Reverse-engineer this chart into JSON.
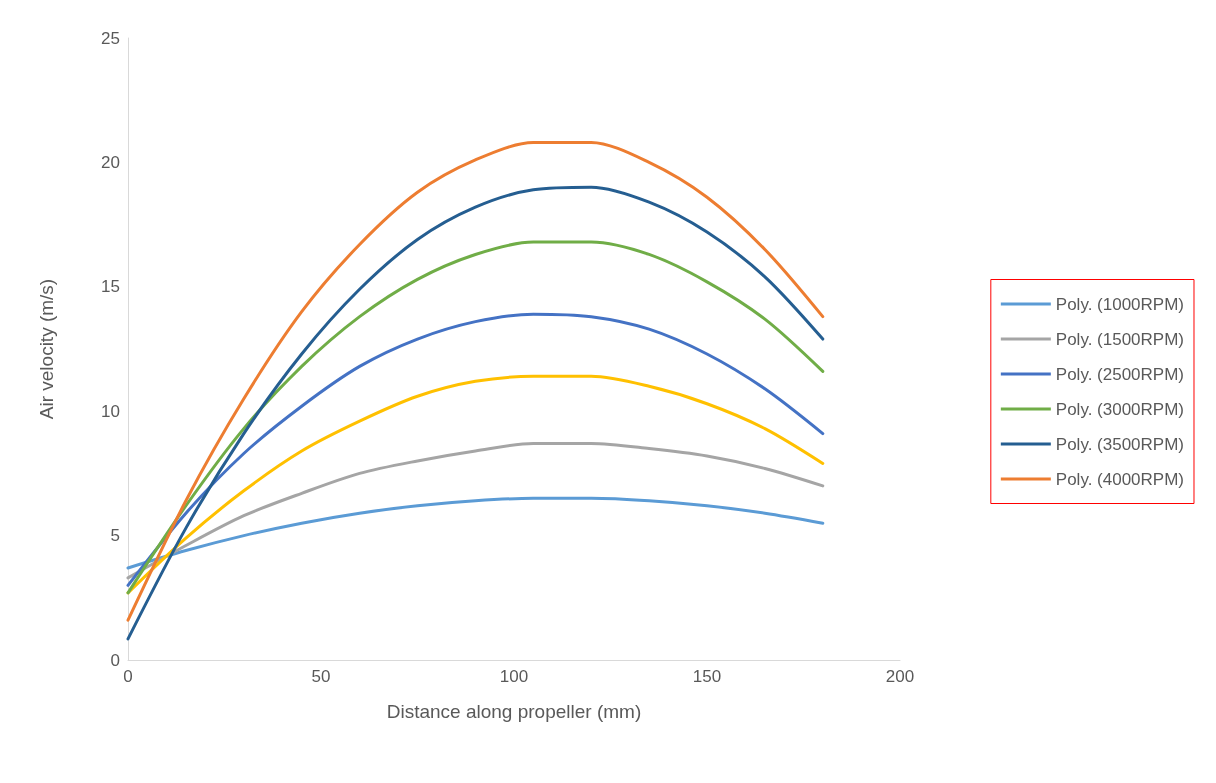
{
  "chart_data": {
    "type": "line",
    "xlabel": "Distance along propeller (mm)",
    "ylabel": "Air velocity (m/s)",
    "x": [
      0,
      15,
      30,
      45,
      60,
      75,
      90,
      105,
      120,
      135,
      150,
      165,
      180
    ],
    "series": [
      {
        "name": "Poly. (1000RPM)",
        "color": "#5b9bd5",
        "values": [
          3.7,
          4.4,
          5.0,
          5.5,
          5.9,
          6.2,
          6.4,
          6.5,
          6.5,
          6.4,
          6.2,
          5.9,
          5.5
        ]
      },
      {
        "name": "Poly. (1500RPM)",
        "color": "#a5a5a5",
        "values": [
          3.3,
          4.6,
          5.8,
          6.7,
          7.5,
          8.0,
          8.4,
          8.7,
          8.7,
          8.5,
          8.2,
          7.7,
          7.0
        ]
      },
      {
        "name": "Poly. (2500RPM)",
        "color": "#4472c4",
        "values": [
          3.0,
          5.9,
          8.3,
          10.2,
          11.8,
          12.9,
          13.6,
          13.9,
          13.8,
          13.3,
          12.3,
          10.9,
          9.1
        ]
      },
      {
        "color": "#ffc000",
        "values": [
          2.7,
          4.9,
          6.8,
          8.4,
          9.6,
          10.6,
          11.2,
          11.4,
          11.4,
          11.0,
          10.3,
          9.3,
          7.9
        ]
      },
      {
        "name": "Poly. (3000RPM)",
        "color": "#70ad47",
        "values": [
          2.7,
          6.2,
          9.3,
          11.8,
          13.8,
          15.3,
          16.3,
          16.8,
          16.8,
          16.3,
          15.2,
          13.7,
          11.6
        ]
      },
      {
        "name": "Poly. (3500RPM)",
        "color": "#255e91",
        "values": [
          0.85,
          5.3,
          9.1,
          12.3,
          14.9,
          16.9,
          18.2,
          18.9,
          19.0,
          18.4,
          17.2,
          15.4,
          12.9
        ]
      },
      {
        "name": "Poly. (4000RPM)",
        "color": "#ed7d31",
        "values": [
          1.6,
          6.4,
          10.5,
          14.0,
          16.7,
          18.8,
          20.1,
          20.8,
          20.8,
          20.0,
          18.6,
          16.5,
          13.8
        ]
      }
    ],
    "xlim": [
      0,
      200
    ],
    "xticks": [
      0,
      50,
      100,
      150,
      200
    ],
    "ylim": [
      0,
      25
    ],
    "yticks": [
      0,
      5,
      10,
      15,
      20,
      25
    ],
    "grid": false,
    "legend": "right",
    "marker": "none",
    "line_style": "solid"
  }
}
